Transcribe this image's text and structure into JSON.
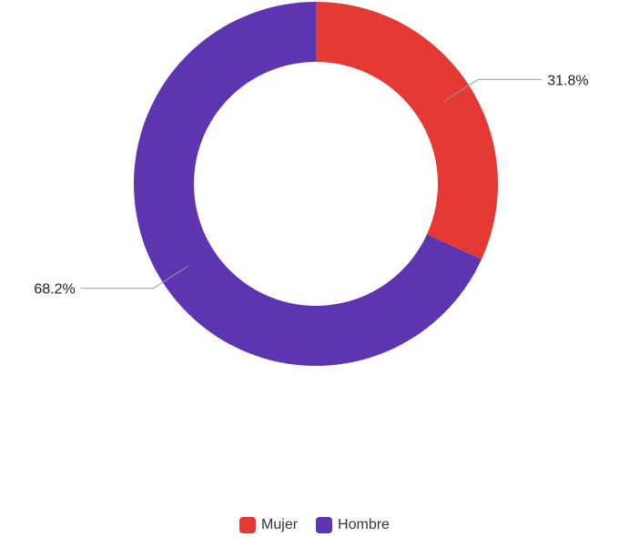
{
  "chart_data": {
    "type": "pie",
    "variant": "donut",
    "categories": [
      "Mujer",
      "Hombre"
    ],
    "values": [
      31.8,
      68.2
    ],
    "labels": [
      "31.8%",
      "68.2%"
    ],
    "colors": [
      "#e53935",
      "#5e35b1"
    ],
    "legend_position": "bottom"
  },
  "legend": {
    "items": [
      {
        "label": "Mujer",
        "color": "#e53935"
      },
      {
        "label": "Hombre",
        "color": "#5e35b1"
      }
    ]
  }
}
